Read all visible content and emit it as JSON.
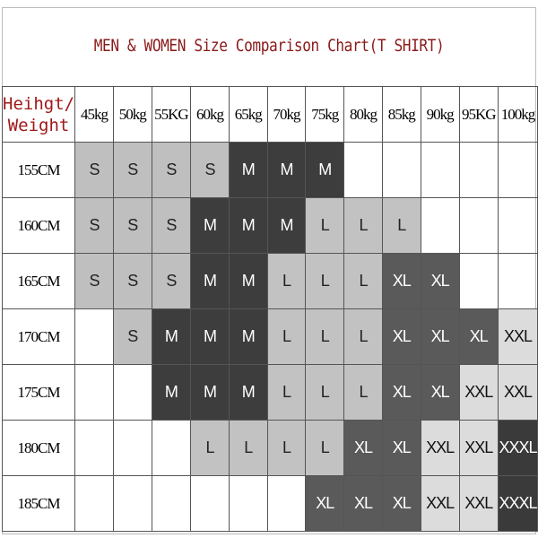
{
  "chart_data": {
    "type": "table",
    "title": "MEN & WOMEN Size Comparison Chart(T SHIRT)",
    "corner_label": [
      "Heihgt/",
      "Weight"
    ],
    "columns": [
      "45kg",
      "50kg",
      "55KG",
      "60kg",
      "65kg",
      "70kg",
      "75kg",
      "80kg",
      "85kg",
      "90kg",
      "95KG",
      "100kg"
    ],
    "rows": [
      {
        "label": "155CM",
        "sizes": [
          "S",
          "S",
          "S",
          "S",
          "M",
          "M",
          "M",
          "",
          "",
          "",
          "",
          ""
        ]
      },
      {
        "label": "160CM",
        "sizes": [
          "S",
          "S",
          "S",
          "M",
          "M",
          "M",
          "L",
          "L",
          "L",
          "",
          "",
          ""
        ]
      },
      {
        "label": "165CM",
        "sizes": [
          "S",
          "S",
          "S",
          "M",
          "M",
          "L",
          "L",
          "L",
          "XL",
          "XL",
          "",
          ""
        ]
      },
      {
        "label": "170CM",
        "sizes": [
          "",
          "S",
          "M",
          "M",
          "M",
          "L",
          "L",
          "L",
          "XL",
          "XL",
          "XL",
          "XXL"
        ]
      },
      {
        "label": "175CM",
        "sizes": [
          "",
          "",
          "M",
          "M",
          "M",
          "L",
          "L",
          "L",
          "XL",
          "XL",
          "XXL",
          "XXL"
        ]
      },
      {
        "label": "180CM",
        "sizes": [
          "",
          "",
          "",
          "L",
          "L",
          "L",
          "L",
          "XL",
          "XL",
          "XXL",
          "XXL",
          "XXXL"
        ]
      },
      {
        "label": "185CM",
        "sizes": [
          "",
          "",
          "",
          "",
          "",
          "",
          "XL",
          "XL",
          "XL",
          "XXL",
          "XXL",
          "XXXL"
        ]
      }
    ],
    "size_colors": {
      "S": {
        "bg": "#bfbfbf",
        "fg": "#222222"
      },
      "M": {
        "bg": "#3d3d3d",
        "fg": "#ffffff"
      },
      "L": {
        "bg": "#c2c2c2",
        "fg": "#222222"
      },
      "XL": {
        "bg": "#5a5a5a",
        "fg": "#ffffff"
      },
      "XXL": {
        "bg": "#dcdcdc",
        "fg": "#111111"
      },
      "XXXL": {
        "bg": "#3a3a3a",
        "fg": "#ffffff"
      }
    },
    "title_color": "#8b1a1a"
  }
}
